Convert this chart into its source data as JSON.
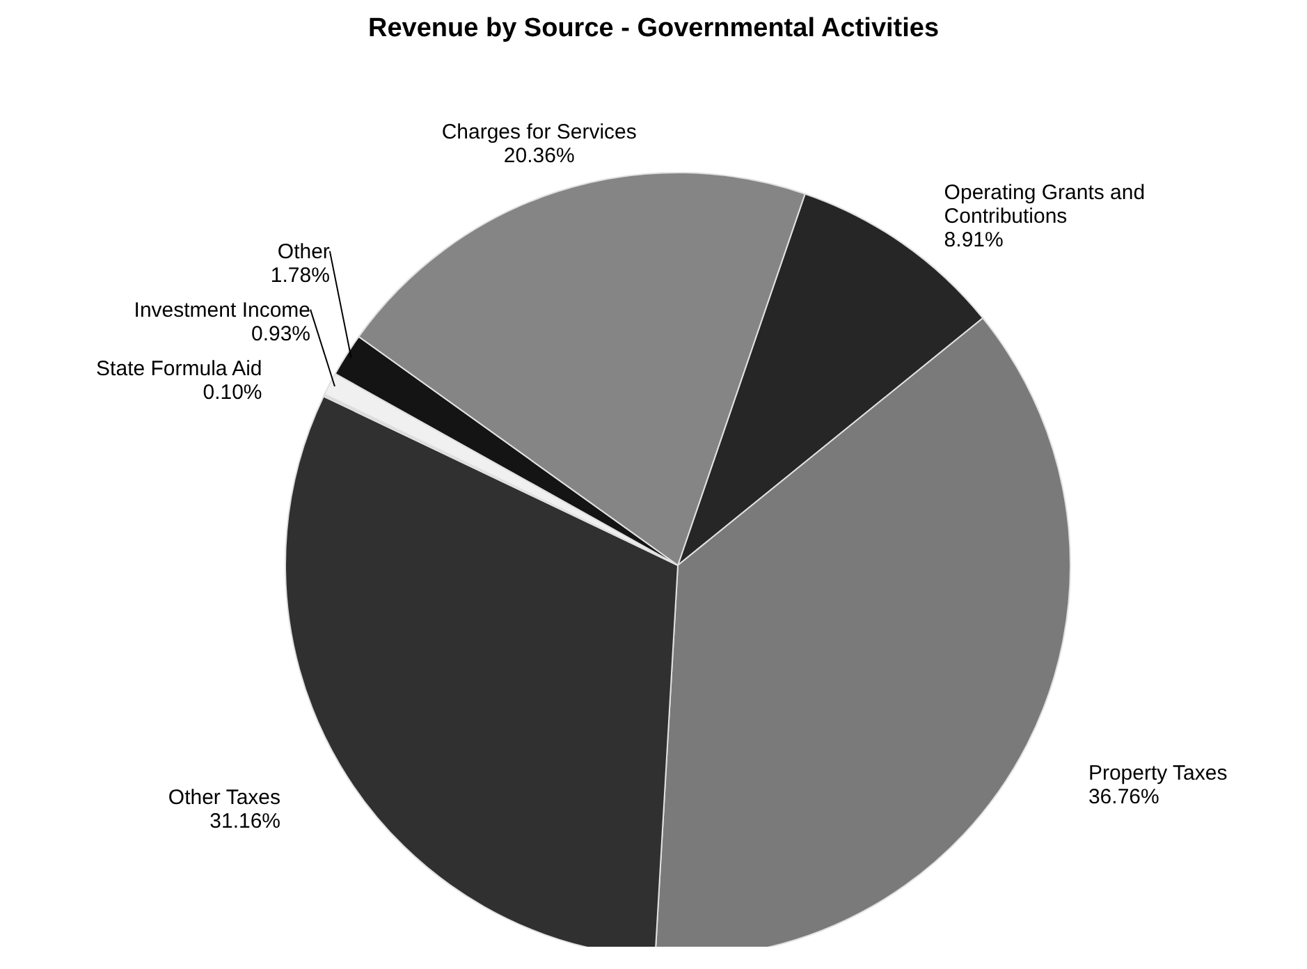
{
  "chart_data": {
    "type": "pie",
    "title": "Revenue by Source - Governmental Activities",
    "categories": [
      "Operating Grants and\nContributions",
      "Property Taxes",
      "Other Taxes",
      "State Formula Aid",
      "Investment Income",
      "Other",
      "Charges for Services"
    ],
    "values": [
      8.91,
      36.76,
      31.16,
      0.1,
      0.93,
      1.78,
      20.36
    ],
    "value_labels": [
      "8.91%",
      "36.76%",
      "31.16%",
      "0.10%",
      "0.93%",
      "1.78%",
      "20.36%"
    ],
    "colors": [
      "#262626",
      "#7a7a7a",
      "#303030",
      "#d8d8d8",
      "#f0f0f0",
      "#141414",
      "#858585"
    ]
  }
}
